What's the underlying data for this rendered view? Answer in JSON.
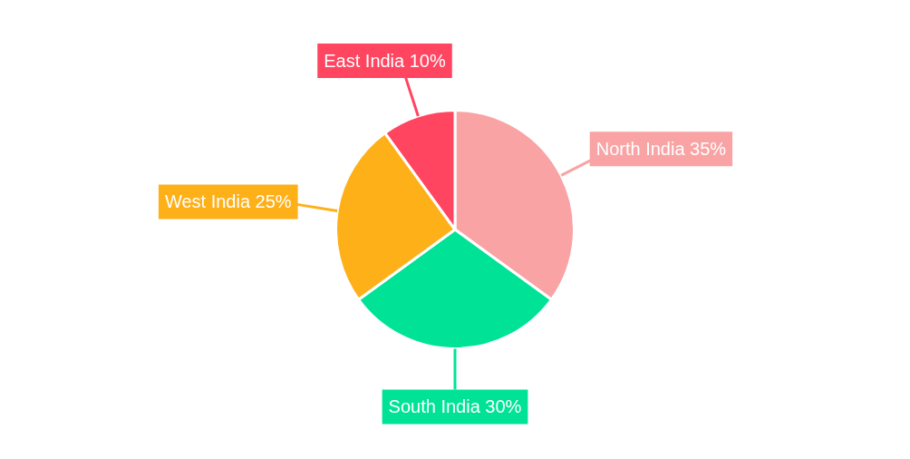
{
  "chart_data": {
    "type": "pie",
    "categories": [
      "North India",
      "South India",
      "West India",
      "East India"
    ],
    "values": [
      35,
      30,
      25,
      10
    ],
    "value_labels": [
      "35%",
      "30%",
      "25%",
      "10%"
    ],
    "colors": [
      "#f9a3a4",
      "#00e396",
      "#feb019",
      "#ff4560"
    ],
    "legend": false
  }
}
